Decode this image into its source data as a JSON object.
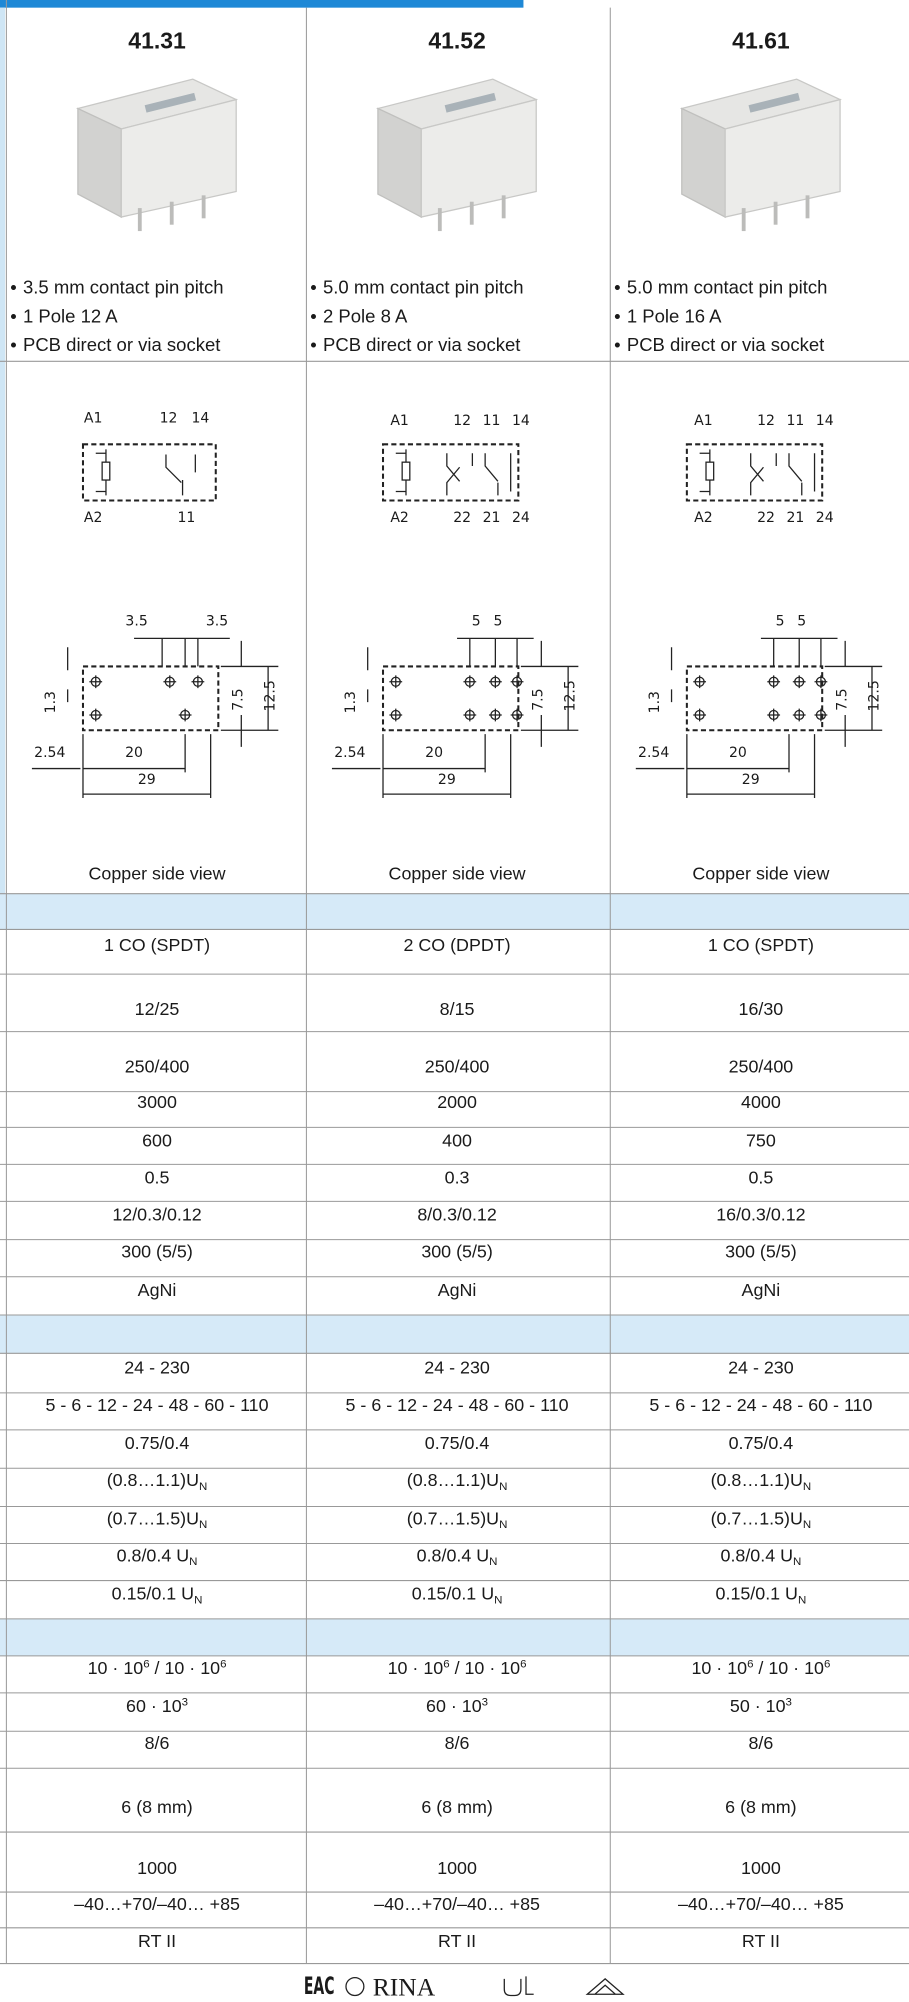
{
  "bullet": "•",
  "columns": [
    {
      "model": "41.31",
      "features": [
        "3.5 mm contact pin pitch",
        "1 Pole 12 A",
        "PCB direct or via socket"
      ],
      "circuit_labels": [
        "A1",
        "12",
        "14",
        "A2",
        "11"
      ],
      "dimension_labels": [
        "3.5",
        "3.5",
        "1.3",
        "7.5",
        "12.5",
        "2.54",
        "20",
        "29"
      ],
      "view_caption": "Copper side view"
    },
    {
      "model": "41.52",
      "features": [
        "5.0 mm contact pin pitch",
        "2 Pole 8 A",
        "PCB direct or via socket"
      ],
      "circuit_labels": [
        "A1",
        "12",
        "11",
        "14",
        "A2",
        "22",
        "21",
        "24"
      ],
      "dimension_labels": [
        "5",
        "5",
        "1.3",
        "7.5",
        "12.5",
        "2.54",
        "20",
        "29"
      ],
      "view_caption": "Copper side view"
    },
    {
      "model": "41.61",
      "features": [
        "5.0 mm contact pin pitch",
        "1 Pole 16 A",
        "PCB direct or via socket"
      ],
      "circuit_labels": [
        "A1",
        "12",
        "11",
        "14",
        "A2",
        "22",
        "21",
        "24"
      ],
      "dimension_labels": [
        "5",
        "5",
        "1.3",
        "7.5",
        "12.5",
        "2.54",
        "20",
        "29"
      ],
      "view_caption": "Copper side view"
    }
  ],
  "rows": [
    [
      "1 CO (SPDT)",
      "2 CO (DPDT)",
      "1 CO (SPDT)"
    ],
    [
      "12/25",
      "8/15",
      "16/30"
    ],
    [
      "250/400",
      "250/400",
      "250/400"
    ],
    [
      "3000",
      "2000",
      "4000"
    ],
    [
      "600",
      "400",
      "750"
    ],
    [
      "0.5",
      "0.3",
      "0.5"
    ],
    [
      "12/0.3/0.12",
      "8/0.3/0.12",
      "16/0.3/0.12"
    ],
    [
      "300 (5/5)",
      "300 (5/5)",
      "300 (5/5)"
    ],
    [
      "AgNi",
      "AgNi",
      "AgNi"
    ],
    [
      "24 - 230",
      "24 - 230",
      "24 - 230"
    ],
    [
      "5 - 6 - 12 - 24 - 48 - 60 - 110",
      "5 - 6 - 12 - 24 - 48 - 60 - 110",
      "5 - 6 - 12 - 24 - 48 - 60 - 110"
    ],
    [
      "0.75/0.4",
      "0.75/0.4",
      "0.75/0.4"
    ],
    [
      [
        "(0.8…1.1)U",
        {
          "sub": "N"
        }
      ],
      [
        "(0.8…1.1)U",
        {
          "sub": "N"
        }
      ],
      [
        "(0.8…1.1)U",
        {
          "sub": "N"
        }
      ]
    ],
    [
      [
        "(0.7…1.5)U",
        {
          "sub": "N"
        }
      ],
      [
        "(0.7…1.5)U",
        {
          "sub": "N"
        }
      ],
      [
        "(0.7…1.5)U",
        {
          "sub": "N"
        }
      ]
    ],
    [
      [
        "0.8/0.4 U",
        {
          "sub": "N"
        }
      ],
      [
        "0.8/0.4 U",
        {
          "sub": "N"
        }
      ],
      [
        "0.8/0.4 U",
        {
          "sub": "N"
        }
      ]
    ],
    [
      [
        "0.15/0.1 U",
        {
          "sub": "N"
        }
      ],
      [
        "0.15/0.1 U",
        {
          "sub": "N"
        }
      ],
      [
        "0.15/0.1 U",
        {
          "sub": "N"
        }
      ]
    ],
    [
      [
        "10 · 10",
        {
          "sup": "6"
        },
        " / 10 · 10",
        {
          "sup": "6"
        }
      ],
      [
        "10 · 10",
        {
          "sup": "6"
        },
        " / 10 · 10",
        {
          "sup": "6"
        }
      ],
      [
        "10 · 10",
        {
          "sup": "6"
        },
        " / 10 · 10",
        {
          "sup": "6"
        }
      ]
    ],
    [
      [
        "60 · 10",
        {
          "sup": "3"
        }
      ],
      [
        "60 · 10",
        {
          "sup": "3"
        }
      ],
      [
        "50 · 10",
        {
          "sup": "3"
        }
      ]
    ],
    [
      "8/6",
      "8/6",
      "8/6"
    ],
    [
      "6 (8 mm)",
      "6 (8 mm)",
      "6 (8 mm)"
    ],
    [
      "1000",
      "1000",
      "1000"
    ],
    [
      "–40…+70/–40… +85",
      "–40…+70/–40… +85",
      "–40…+70/–40… +85"
    ],
    [
      "RT II",
      "RT II",
      "RT II"
    ]
  ],
  "footer": {
    "certifications": [
      "EAC",
      "RINA"
    ]
  }
}
